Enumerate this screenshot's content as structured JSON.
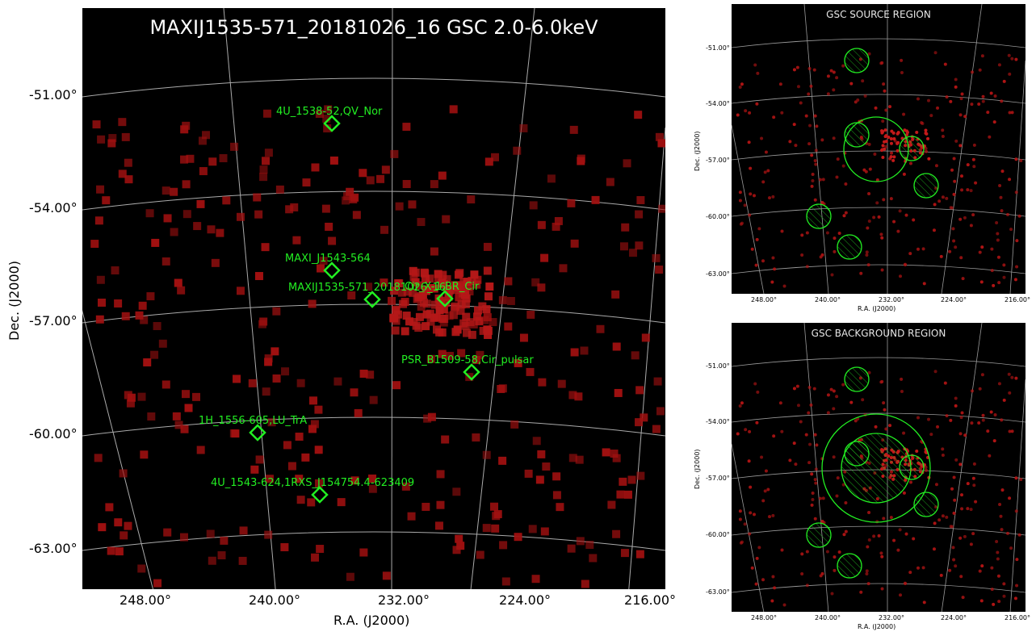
{
  "main_panel": {
    "title": "MAXIJ1535-571_20181026_16 GSC 2.0-6.0keV",
    "ylabel": "Dec. (J2000)",
    "xlabel": "R.A. (J2000)",
    "y_ticks": [
      "-51.00°",
      "-54.00°",
      "-57.00°",
      "-60.00°",
      "-63.00°"
    ],
    "x_ticks": [
      "248.00°",
      "240.00°",
      "232.00°",
      "224.00°",
      "216.00°"
    ],
    "source_labels": [
      {
        "label": "4U_1538-52,QV_Nor"
      },
      {
        "label": "MAXI_J1543-564"
      },
      {
        "label": "MAXIJ1535-571_20181026_16"
      },
      {
        "label": "Cir_X-1,BR_Cir"
      },
      {
        "label": "PSR_B1509-58,Cir_pulsar"
      },
      {
        "label": "1H_1556-605,LU_TrA"
      },
      {
        "label": "4U_1543-624,1RXS_J154754.4-623409"
      }
    ],
    "colors": {
      "background": "#000000",
      "markers": "#22ee22",
      "events": "#a01010",
      "grid": "#aaaaaa"
    }
  },
  "source_region_panel": {
    "title": "GSC SOURCE REGION",
    "ylabel": "Dec. (J2000)",
    "xlabel": "R.A. (J2000)",
    "y_ticks": [
      "-51.00°",
      "-54.00°",
      "-57.00°",
      "-60.00°",
      "-63.00°"
    ],
    "x_ticks": [
      "248.00°",
      "240.00°",
      "232.00°",
      "224.00°",
      "216.00°"
    ]
  },
  "background_region_panel": {
    "title": "GSC BACKGROUND REGION",
    "ylabel": "Dec. (J2000)",
    "xlabel": "R.A. (J2000)",
    "y_ticks": [
      "-51.00°",
      "-54.00°",
      "-57.00°",
      "-60.00°",
      "-63.00°"
    ],
    "x_ticks": [
      "248.00°",
      "240.00°",
      "232.00°",
      "224.00°",
      "216.00°"
    ]
  }
}
